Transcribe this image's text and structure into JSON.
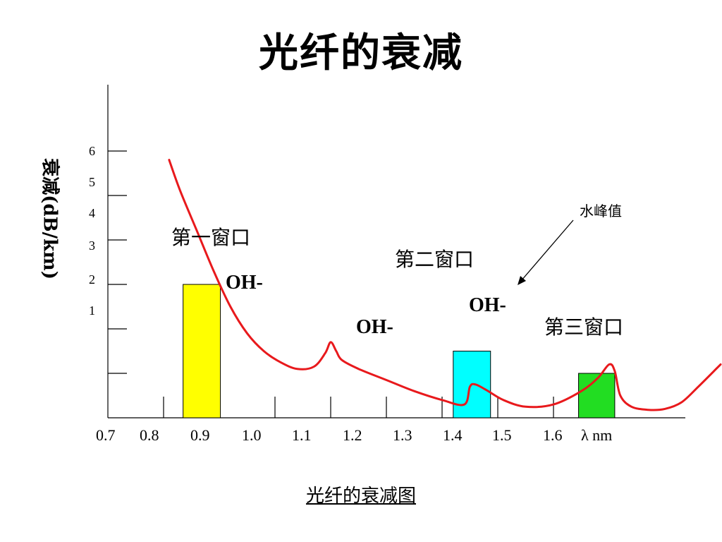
{
  "title": "光纤的衰减",
  "caption": "光纤的衰减图",
  "chart_data": {
    "type": "line",
    "ylabel": "衰减(dB/km)",
    "xlabel": "λ nm",
    "x_ticks": [
      "0.7",
      "0.8",
      "0.9",
      "1.0",
      "1.1",
      "1.2",
      "1.3",
      "1.4",
      "1.5",
      "1.6"
    ],
    "y_ticks": [
      "1",
      "2",
      "3",
      "4",
      "5",
      "6"
    ],
    "xlim": [
      0.7,
      1.8
    ],
    "ylim": [
      0,
      7.5
    ],
    "colors": {
      "curve": "#e8191c",
      "window1": "#ffff00",
      "window2": "#00ffff",
      "window3": "#22dd22"
    },
    "series": [
      {
        "x": [
          0.81,
          0.83,
          0.86,
          0.89,
          0.92,
          0.95,
          0.98,
          1.01,
          1.04,
          1.07,
          1.09,
          1.1,
          1.11,
          1.12,
          1.15,
          1.2,
          1.25,
          1.3,
          1.34,
          1.35,
          1.36,
          1.38,
          1.41,
          1.45,
          1.5,
          1.55,
          1.58,
          1.6,
          1.61,
          1.62,
          1.64,
          1.67,
          1.7,
          1.73,
          1.76,
          1.8
        ],
        "y": [
          5.8,
          5.1,
          4.2,
          3.3,
          2.5,
          1.9,
          1.5,
          1.25,
          1.1,
          1.15,
          1.45,
          1.7,
          1.5,
          1.3,
          1.1,
          0.85,
          0.6,
          0.4,
          0.3,
          0.7,
          0.75,
          0.62,
          0.4,
          0.25,
          0.3,
          0.6,
          0.9,
          1.2,
          1.05,
          0.5,
          0.25,
          0.18,
          0.2,
          0.35,
          0.7,
          1.2
        ]
      }
    ],
    "bars": [
      {
        "label": "第一窗口",
        "x0": 0.835,
        "x1": 0.902,
        "value": 3.0
      },
      {
        "label": "第二窗口",
        "x0": 1.32,
        "x1": 1.387,
        "value": 1.5
      },
      {
        "label": "第三窗口",
        "x0": 1.545,
        "x1": 1.61,
        "value": 1.0
      }
    ],
    "annotations": [
      "OH-",
      "OH-",
      "OH-",
      "水峰值"
    ]
  }
}
